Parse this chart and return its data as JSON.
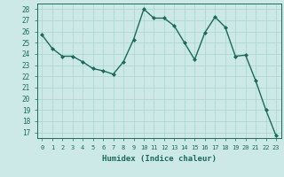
{
  "x": [
    0,
    1,
    2,
    3,
    4,
    5,
    6,
    7,
    8,
    9,
    10,
    11,
    12,
    13,
    14,
    15,
    16,
    17,
    18,
    19,
    20,
    21,
    22,
    23
  ],
  "y": [
    25.7,
    24.5,
    23.8,
    23.8,
    23.3,
    22.7,
    22.5,
    22.2,
    23.3,
    25.3,
    28.0,
    27.2,
    27.2,
    26.5,
    25.0,
    23.5,
    25.9,
    27.3,
    26.4,
    23.8,
    23.9,
    21.6,
    19.0,
    16.7
  ],
  "line_color": "#1a6b5a",
  "marker_color": "#1a6b5a",
  "bg_color": "#cce9e7",
  "grid_color": "#aad4d0",
  "xlabel": "Humidex (Indice chaleur)",
  "ylabel_ticks": [
    17,
    18,
    19,
    20,
    21,
    22,
    23,
    24,
    25,
    26,
    27,
    28
  ],
  "xlim": [
    -0.5,
    23.5
  ],
  "ylim": [
    16.5,
    28.5
  ],
  "tick_label_color": "#1a6b5a",
  "xlabel_color": "#1a6b5a"
}
